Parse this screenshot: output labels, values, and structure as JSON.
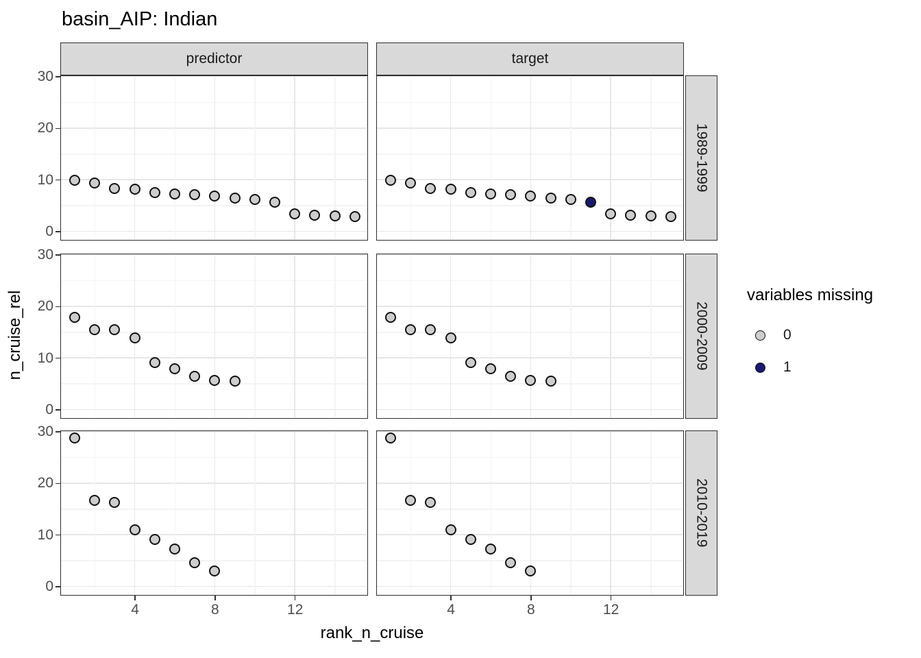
{
  "chart_data": {
    "type": "scatter",
    "title": "basin_AIP: Indian",
    "xlabel": "rank_n_cruise",
    "ylabel": "n_cruise_rel",
    "col_facets": [
      "predictor",
      "target"
    ],
    "row_facets": [
      "1989-1999",
      "2000-2009",
      "2010-2019"
    ],
    "x_ticks": [
      4,
      8,
      12
    ],
    "y_ticks": [
      30,
      20,
      10,
      0
    ],
    "xlim": [
      0.3,
      15.6
    ],
    "ylim": [
      -1.7,
      30.3
    ],
    "grid": {
      "major_x": [
        4,
        8,
        12
      ],
      "minor_x": [
        2,
        6,
        10,
        14
      ],
      "major_y": [
        0,
        10,
        20,
        30
      ],
      "minor_y": [
        5,
        15,
        25
      ]
    },
    "legend": {
      "title": "variables missing",
      "entries": [
        {
          "label": "0",
          "color": "#cdcdcd"
        },
        {
          "label": "1",
          "color": "#191970"
        }
      ]
    },
    "point_colors": {
      "0": "#cdcdcd",
      "1": "#191970"
    },
    "points_format": [
      "rank_n_cruise",
      "n_cruise_rel",
      "variables_missing"
    ],
    "panels": [
      {
        "col": "predictor",
        "row": "1989-1999",
        "points": [
          [
            1,
            9.9,
            0
          ],
          [
            2,
            9.3,
            0
          ],
          [
            3,
            8.3,
            0
          ],
          [
            4,
            8.2,
            0
          ],
          [
            5,
            7.5,
            0
          ],
          [
            6,
            7.3,
            0
          ],
          [
            7,
            7.1,
            0
          ],
          [
            8,
            6.9,
            0
          ],
          [
            9,
            6.4,
            0
          ],
          [
            10,
            6.2,
            0
          ],
          [
            11,
            5.7,
            0
          ],
          [
            12,
            3.4,
            0
          ],
          [
            13,
            3.1,
            0
          ],
          [
            14,
            3.0,
            0
          ],
          [
            15,
            2.9,
            0
          ]
        ]
      },
      {
        "col": "target",
        "row": "1989-1999",
        "points": [
          [
            1,
            9.9,
            0
          ],
          [
            2,
            9.3,
            0
          ],
          [
            3,
            8.3,
            0
          ],
          [
            4,
            8.2,
            0
          ],
          [
            5,
            7.5,
            0
          ],
          [
            6,
            7.3,
            0
          ],
          [
            7,
            7.1,
            0
          ],
          [
            8,
            6.9,
            0
          ],
          [
            9,
            6.4,
            0
          ],
          [
            10,
            6.2,
            0
          ],
          [
            11,
            5.7,
            1
          ],
          [
            12,
            3.4,
            0
          ],
          [
            13,
            3.1,
            0
          ],
          [
            14,
            3.0,
            0
          ],
          [
            15,
            2.9,
            0
          ]
        ]
      },
      {
        "col": "predictor",
        "row": "2000-2009",
        "points": [
          [
            1,
            17.8,
            0
          ],
          [
            2,
            15.4,
            0
          ],
          [
            3,
            15.4,
            0
          ],
          [
            4,
            13.9,
            0
          ],
          [
            5,
            9.1,
            0
          ],
          [
            6,
            7.9,
            0
          ],
          [
            7,
            6.4,
            0
          ],
          [
            8,
            5.7,
            0
          ],
          [
            9,
            5.5,
            0
          ]
        ]
      },
      {
        "col": "target",
        "row": "2000-2009",
        "points": [
          [
            1,
            17.8,
            0
          ],
          [
            2,
            15.4,
            0
          ],
          [
            3,
            15.4,
            0
          ],
          [
            4,
            13.9,
            0
          ],
          [
            5,
            9.1,
            0
          ],
          [
            6,
            7.9,
            0
          ],
          [
            7,
            6.4,
            0
          ],
          [
            8,
            5.7,
            0
          ],
          [
            9,
            5.5,
            0
          ]
        ]
      },
      {
        "col": "predictor",
        "row": "2010-2019",
        "points": [
          [
            1,
            28.7,
            0
          ],
          [
            2,
            16.6,
            0
          ],
          [
            3,
            16.2,
            0
          ],
          [
            4,
            11.0,
            0
          ],
          [
            5,
            9.1,
            0
          ],
          [
            6,
            7.2,
            0
          ],
          [
            7,
            4.6,
            0
          ],
          [
            8,
            3.0,
            0
          ]
        ]
      },
      {
        "col": "target",
        "row": "2010-2019",
        "points": [
          [
            1,
            28.7,
            0
          ],
          [
            2,
            16.6,
            0
          ],
          [
            3,
            16.2,
            0
          ],
          [
            4,
            11.0,
            0
          ],
          [
            5,
            9.1,
            0
          ],
          [
            6,
            7.2,
            0
          ],
          [
            7,
            4.6,
            0
          ],
          [
            8,
            3.0,
            0
          ]
        ]
      }
    ]
  }
}
